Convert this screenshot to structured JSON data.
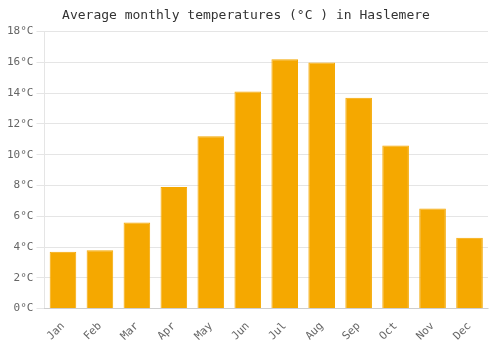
{
  "chart_data": {
    "type": "bar",
    "title": "Average monthly temperatures (°C ) in Haslemere",
    "categories": [
      "Jan",
      "Feb",
      "Mar",
      "Apr",
      "May",
      "Jun",
      "Jul",
      "Aug",
      "Sep",
      "Oct",
      "Nov",
      "Dec"
    ],
    "values": [
      3.7,
      3.8,
      5.6,
      7.9,
      11.2,
      14.1,
      16.2,
      16.0,
      13.7,
      10.6,
      6.5,
      4.6
    ],
    "color": "#F5A800",
    "ylim": [
      0,
      18
    ],
    "yticks": [
      {
        "value": 0,
        "label": "0°C"
      },
      {
        "value": 2,
        "label": "2°C"
      },
      {
        "value": 4,
        "label": "4°C"
      },
      {
        "value": 6,
        "label": "6°C"
      },
      {
        "value": 8,
        "label": "8°C"
      },
      {
        "value": 10,
        "label": "10°C"
      },
      {
        "value": 12,
        "label": "12°C"
      },
      {
        "value": 14,
        "label": "14°C"
      },
      {
        "value": 16,
        "label": "16°C"
      },
      {
        "value": 18,
        "label": "18°C"
      }
    ],
    "grid": true
  }
}
